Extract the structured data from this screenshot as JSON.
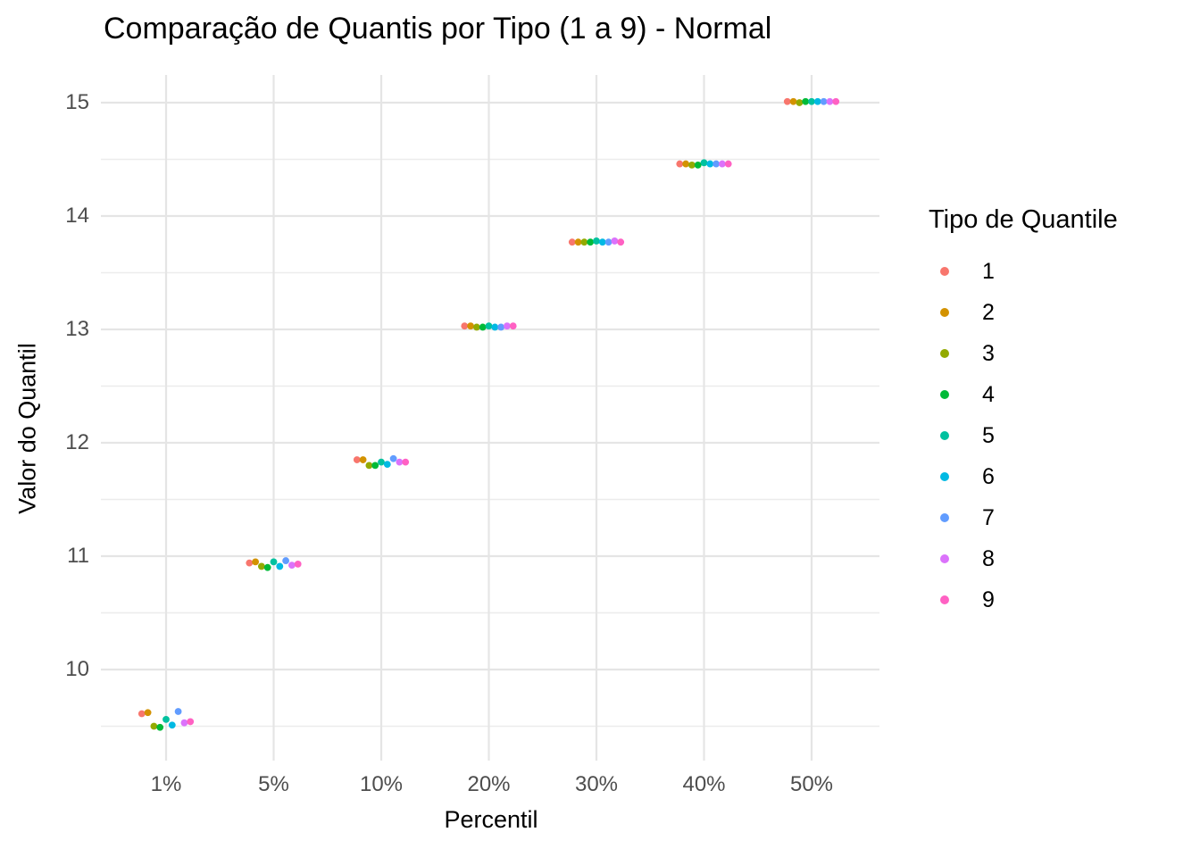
{
  "chart_data": {
    "type": "scatter",
    "title": "Comparação de Quantis por Tipo (1 a 9) - Normal",
    "xlabel": "Percentil",
    "ylabel": "Valor do Quantil",
    "x_axis_type": "discrete",
    "x_categories": [
      "1%",
      "5%",
      "10%",
      "20%",
      "30%",
      "40%",
      "50%"
    ],
    "y_ticks": [
      {
        "label": "15",
        "value": 15
      },
      {
        "label": "14",
        "value": 14
      },
      {
        "label": "13",
        "value": 13
      },
      {
        "label": "12",
        "value": 12
      },
      {
        "label": "11",
        "value": 11
      },
      {
        "label": "10",
        "value": 10
      }
    ],
    "y_minor_gridlines": [
      9.5,
      10.5,
      11.5,
      12.5,
      13.5,
      14.5
    ],
    "ylim": [
      9.2,
      15.26
    ],
    "grid": true,
    "legend_position": "right",
    "legend": {
      "title": "Tipo de Quantile",
      "entries": [
        {
          "label": "1",
          "color": "#F8766D"
        },
        {
          "label": "2",
          "color": "#D39200"
        },
        {
          "label": "3",
          "color": "#93AA00"
        },
        {
          "label": "4",
          "color": "#00BA38"
        },
        {
          "label": "5",
          "color": "#00C19F"
        },
        {
          "label": "6",
          "color": "#00B9E3"
        },
        {
          "label": "7",
          "color": "#619CFF"
        },
        {
          "label": "8",
          "color": "#DB72FB"
        },
        {
          "label": "9",
          "color": "#FF61C3"
        }
      ]
    },
    "series": [
      {
        "name": "1",
        "color": "#F8766D",
        "values": [
          9.61,
          10.94,
          11.85,
          13.03,
          13.77,
          14.46,
          15.01
        ]
      },
      {
        "name": "2",
        "color": "#D39200",
        "values": [
          9.62,
          10.95,
          11.85,
          13.03,
          13.77,
          14.46,
          15.01
        ]
      },
      {
        "name": "3",
        "color": "#93AA00",
        "values": [
          9.5,
          10.91,
          11.8,
          13.02,
          13.77,
          14.45,
          15.0
        ]
      },
      {
        "name": "4",
        "color": "#00BA38",
        "values": [
          9.49,
          10.9,
          11.8,
          13.02,
          13.77,
          14.45,
          15.01
        ]
      },
      {
        "name": "5",
        "color": "#00C19F",
        "values": [
          9.56,
          10.95,
          11.83,
          13.03,
          13.78,
          14.47,
          15.01
        ]
      },
      {
        "name": "6",
        "color": "#00B9E3",
        "values": [
          9.51,
          10.91,
          11.81,
          13.02,
          13.77,
          14.46,
          15.01
        ]
      },
      {
        "name": "7",
        "color": "#619CFF",
        "values": [
          9.63,
          10.96,
          11.86,
          13.02,
          13.77,
          14.46,
          15.01
        ]
      },
      {
        "name": "8",
        "color": "#DB72FB",
        "values": [
          9.53,
          10.92,
          11.83,
          13.03,
          13.78,
          14.46,
          15.01
        ]
      },
      {
        "name": "9",
        "color": "#FF61C3",
        "values": [
          9.54,
          10.93,
          11.83,
          13.03,
          13.77,
          14.46,
          15.01
        ]
      }
    ]
  },
  "colors": {
    "background": "#ffffff",
    "gridline_major": "#e5e5e5",
    "gridline_minor": "#ececec",
    "axis_text": "#4d4d4d",
    "text": "#000000"
  }
}
